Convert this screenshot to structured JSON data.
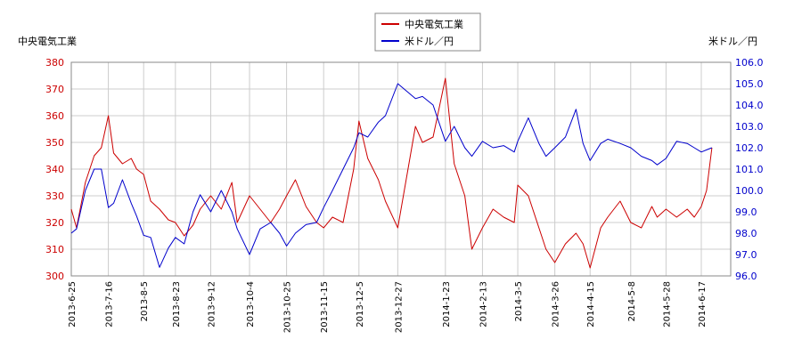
{
  "chart_data": {
    "type": "line",
    "ylabel_left": "中央電気工業",
    "ylabel_right": "米ドル／円",
    "x_ticks": [
      "2013-6-25",
      "2013-7-16",
      "2013-8-5",
      "2013-8-23",
      "2013-9-12",
      "2013-10-4",
      "2013-10-25",
      "2013-11-15",
      "2013-12-5",
      "2013-12-27",
      "2014-1-23",
      "2014-2-13",
      "2014-3-5",
      "2014-3-26",
      "2014-4-15",
      "2014-5-8",
      "2014-5-28",
      "2014-6-17"
    ],
    "y_left": {
      "min": 300,
      "max": 380,
      "ticks": [
        "300",
        "310",
        "320",
        "330",
        "340",
        "350",
        "360",
        "370",
        "380"
      ]
    },
    "y_right": {
      "min": 96.0,
      "max": 106.0,
      "ticks": [
        "96.0",
        "97.0",
        "98.0",
        "99.0",
        "100.0",
        "101.0",
        "102.0",
        "103.0",
        "104.0",
        "105.0",
        "106.0"
      ]
    },
    "grid": true,
    "legend_position": "top-center",
    "colors": {
      "stock": "#cc0000",
      "fx": "#0000cc",
      "left_axis_text": "#cc0000",
      "right_axis_text": "#0000cc",
      "grid": "#cccccc"
    },
    "series": [
      {
        "name": "中央電気工業",
        "axis": "left",
        "color": "#cc0000",
        "x": [
          "2013-6-25",
          "2013-6-28",
          "2013-7-3",
          "2013-7-8",
          "2013-7-12",
          "2013-7-16",
          "2013-7-19",
          "2013-7-24",
          "2013-7-29",
          "2013-8-1",
          "2013-8-5",
          "2013-8-9",
          "2013-8-14",
          "2013-8-19",
          "2013-8-23",
          "2013-8-28",
          "2013-9-2",
          "2013-9-6",
          "2013-9-12",
          "2013-9-18",
          "2013-9-24",
          "2013-9-27",
          "2013-10-4",
          "2013-10-10",
          "2013-10-16",
          "2013-10-21",
          "2013-10-25",
          "2013-10-30",
          "2013-11-5",
          "2013-11-11",
          "2013-11-15",
          "2013-11-20",
          "2013-11-26",
          "2013-12-2",
          "2013-12-5",
          "2013-12-10",
          "2013-12-16",
          "2013-12-20",
          "2013-12-27",
          "2014-1-6",
          "2014-1-10",
          "2014-1-16",
          "2014-1-23",
          "2014-1-28",
          "2014-2-3",
          "2014-2-7",
          "2014-2-13",
          "2014-2-19",
          "2014-2-25",
          "2014-3-3",
          "2014-3-5",
          "2014-3-11",
          "2014-3-17",
          "2014-3-21",
          "2014-3-26",
          "2014-4-1",
          "2014-4-7",
          "2014-4-11",
          "2014-4-15",
          "2014-4-21",
          "2014-4-25",
          "2014-5-2",
          "2014-5-8",
          "2014-5-14",
          "2014-5-20",
          "2014-5-23",
          "2014-5-28",
          "2014-6-3",
          "2014-6-9",
          "2014-6-13",
          "2014-6-17",
          "2014-6-20",
          "2014-6-23"
        ],
        "values": [
          325,
          318,
          335,
          345,
          348,
          360,
          346,
          342,
          344,
          340,
          338,
          328,
          325,
          321,
          320,
          315,
          319,
          325,
          330,
          325,
          335,
          320,
          330,
          325,
          320,
          325,
          330,
          336,
          326,
          320,
          318,
          322,
          320,
          340,
          358,
          344,
          336,
          328,
          318,
          356,
          350,
          352,
          374,
          342,
          330,
          310,
          318,
          325,
          322,
          320,
          334,
          330,
          318,
          310,
          305,
          312,
          316,
          312,
          303,
          318,
          322,
          328,
          320,
          318,
          326,
          322,
          325,
          322,
          325,
          322,
          326,
          332,
          348
        ]
      },
      {
        "name": "米ドル／円",
        "axis": "right",
        "color": "#0000cc",
        "x": [
          "2013-6-25",
          "2013-6-28",
          "2013-7-3",
          "2013-7-8",
          "2013-7-12",
          "2013-7-16",
          "2013-7-19",
          "2013-7-24",
          "2013-7-29",
          "2013-8-1",
          "2013-8-5",
          "2013-8-9",
          "2013-8-14",
          "2013-8-19",
          "2013-8-23",
          "2013-8-28",
          "2013-9-2",
          "2013-9-6",
          "2013-9-12",
          "2013-9-18",
          "2013-9-24",
          "2013-9-27",
          "2013-10-4",
          "2013-10-10",
          "2013-10-16",
          "2013-10-21",
          "2013-10-25",
          "2013-10-30",
          "2013-11-5",
          "2013-11-11",
          "2013-11-15",
          "2013-11-20",
          "2013-11-26",
          "2013-12-2",
          "2013-12-5",
          "2013-12-10",
          "2013-12-16",
          "2013-12-20",
          "2013-12-27",
          "2014-1-6",
          "2014-1-10",
          "2014-1-16",
          "2014-1-23",
          "2014-1-28",
          "2014-2-3",
          "2014-2-7",
          "2014-2-13",
          "2014-2-19",
          "2014-2-25",
          "2014-3-3",
          "2014-3-5",
          "2014-3-11",
          "2014-3-17",
          "2014-3-21",
          "2014-3-26",
          "2014-4-1",
          "2014-4-7",
          "2014-4-11",
          "2014-4-15",
          "2014-4-21",
          "2014-4-25",
          "2014-5-2",
          "2014-5-8",
          "2014-5-14",
          "2014-5-20",
          "2014-5-23",
          "2014-5-28",
          "2014-6-3",
          "2014-6-9",
          "2014-6-13",
          "2014-6-17",
          "2014-6-20",
          "2014-6-23"
        ],
        "values": [
          98.0,
          98.2,
          100.0,
          101.0,
          101.0,
          99.2,
          99.4,
          100.5,
          99.4,
          98.8,
          97.9,
          97.8,
          96.4,
          97.3,
          97.8,
          97.5,
          99.0,
          99.8,
          99.0,
          100.0,
          99.0,
          98.2,
          97.0,
          98.2,
          98.5,
          98.0,
          97.4,
          98.0,
          98.4,
          98.5,
          99.2,
          100.0,
          101.0,
          102.0,
          102.7,
          102.5,
          103.2,
          103.5,
          105.0,
          104.3,
          104.4,
          104.0,
          102.3,
          103.0,
          102.0,
          101.6,
          102.3,
          102.0,
          102.1,
          101.8,
          102.3,
          103.4,
          102.2,
          101.6,
          102.0,
          102.5,
          103.8,
          102.2,
          101.4,
          102.2,
          102.4,
          102.2,
          102.0,
          101.6,
          101.4,
          101.2,
          101.5,
          102.3,
          102.2,
          102.0,
          101.8,
          101.9,
          102.0
        ]
      }
    ]
  }
}
